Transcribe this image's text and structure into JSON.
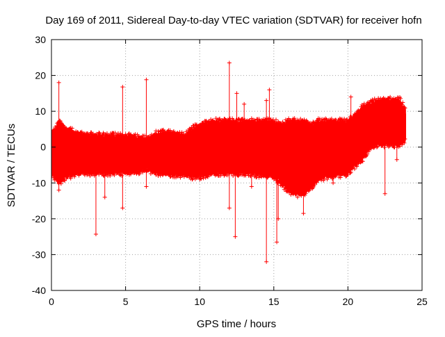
{
  "chart_data": {
    "type": "scatter",
    "title": "Day 169 of 2011, Sidereal Day-to-day VTEC variation (SDTVAR) for receiver hofn",
    "xlabel": "GPS time / hours",
    "ylabel": "SDTVAR / TECUs",
    "xlim": [
      0,
      25
    ],
    "ylim": [
      -40,
      30
    ],
    "xticks": [
      0,
      5,
      10,
      15,
      20,
      25
    ],
    "yticks": [
      -40,
      -30,
      -20,
      -10,
      0,
      10,
      20,
      30
    ],
    "xtick_labels": [
      "0",
      "5",
      "10",
      "15",
      "20",
      "25"
    ],
    "ytick_labels": [
      "-40",
      "-30",
      "-20",
      "-10",
      "0",
      "10",
      "20",
      "30"
    ],
    "grid": true,
    "marker": "+",
    "series_color": "#ff0000",
    "series": [
      {
        "name": "SDTVAR",
        "envelope": {
          "t": [
            0.0,
            0.3,
            0.5,
            1.0,
            1.5,
            2.0,
            3.0,
            4.0,
            5.0,
            6.0,
            6.5,
            7.0,
            8.0,
            9.0,
            9.5,
            10.0,
            11.0,
            12.0,
            13.0,
            14.0,
            15.0,
            15.5,
            16.0,
            16.5,
            17.0,
            17.5,
            18.0,
            18.5,
            19.0,
            19.5,
            20.0,
            20.5,
            21.0,
            21.5,
            22.0,
            23.0,
            23.5,
            23.9
          ],
          "upper": [
            4,
            5,
            7,
            5,
            4,
            3.5,
            3,
            3,
            3,
            2.5,
            2,
            3.5,
            4,
            3,
            5,
            6,
            7,
            7,
            7,
            7,
            7,
            6,
            7,
            7,
            7,
            6,
            7,
            7,
            7,
            7,
            7,
            9,
            11,
            12,
            13,
            13,
            13,
            10
          ],
          "lower": [
            -7,
            -9,
            -10,
            -8,
            -7.5,
            -7,
            -7,
            -7,
            -7,
            -6.5,
            -6,
            -7,
            -7.5,
            -7.5,
            -8,
            -8,
            -7,
            -7,
            -7,
            -7.5,
            -8,
            -10,
            -12,
            -13,
            -13,
            -11,
            -9,
            -8,
            -8,
            -7.5,
            -7,
            -5,
            -3,
            0,
            1,
            1,
            1,
            2
          ]
        },
        "extreme_points": [
          {
            "x": 0.5,
            "y": 18
          },
          {
            "x": 0.5,
            "y": -12
          },
          {
            "x": 3.0,
            "y": -24.3
          },
          {
            "x": 3.6,
            "y": -14
          },
          {
            "x": 4.8,
            "y": 16.8
          },
          {
            "x": 4.8,
            "y": -17
          },
          {
            "x": 6.4,
            "y": 18.8
          },
          {
            "x": 6.4,
            "y": -11
          },
          {
            "x": 12.0,
            "y": 23.5
          },
          {
            "x": 12.0,
            "y": -17
          },
          {
            "x": 12.4,
            "y": -25
          },
          {
            "x": 12.5,
            "y": 15
          },
          {
            "x": 13.0,
            "y": 12
          },
          {
            "x": 13.5,
            "y": -11
          },
          {
            "x": 14.5,
            "y": -32
          },
          {
            "x": 14.5,
            "y": 13
          },
          {
            "x": 14.7,
            "y": 16
          },
          {
            "x": 15.2,
            "y": -26.5
          },
          {
            "x": 15.3,
            "y": -20
          },
          {
            "x": 17.0,
            "y": -18.5
          },
          {
            "x": 19.0,
            "y": -10
          },
          {
            "x": 20.2,
            "y": 14
          },
          {
            "x": 22.5,
            "y": -13
          },
          {
            "x": 23.3,
            "y": -3.5
          }
        ]
      }
    ]
  }
}
